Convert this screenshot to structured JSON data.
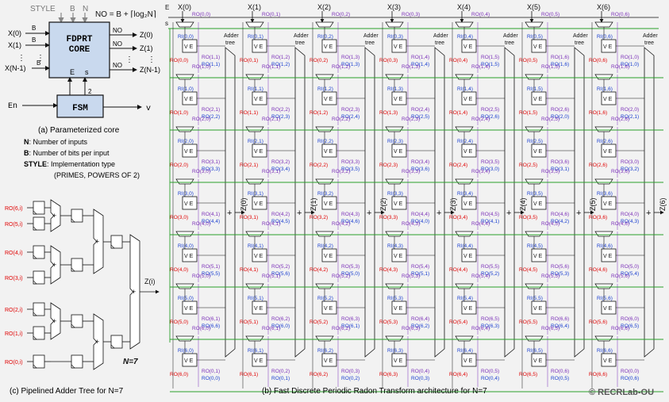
{
  "core": {
    "top_labels": [
      "STYLE",
      "B",
      "N"
    ],
    "no_formula": "NO = B + ⌈log₂N⌉",
    "box_line1": "FDPRT",
    "box_line2": "CORE",
    "inputs": [
      "X(0)",
      "X(1)",
      "X(N-1)"
    ],
    "outputs": [
      "Z(0)",
      "Z(1)",
      "Z(N-1)"
    ],
    "bus_in": "B",
    "bus_out": "NO",
    "port_e": "E",
    "port_s": "s",
    "bus2": "2",
    "fsm": "FSM",
    "en": "En",
    "v": "v",
    "caption": "(a) Parameterized core"
  },
  "legend": [
    {
      "key": "N",
      "text": ": Number of inputs"
    },
    {
      "key": "B",
      "text": ": Number of bits per input"
    },
    {
      "key": "STYLE",
      "text": ": Implementation  type"
    },
    {
      "key": "",
      "text": "(PRIMES, POWERS OF 2)"
    }
  ],
  "adder_tree": {
    "inputs": [
      "RO(6,i)",
      "RO(5,i)",
      "RO(4,i)",
      "RO(3,i)",
      "RO(2,i)",
      "RO(1,i)",
      "RO(0,i)"
    ],
    "output": "Z(i)",
    "n_label": "N=7",
    "caption": "(c) Pipelined  Adder Tree for N=7"
  },
  "architecture": {
    "n": 7,
    "x_labels": [
      "X(0)",
      "X(1)",
      "X(2)",
      "X(3)",
      "X(4)",
      "X(5)",
      "X(6)"
    ],
    "z_labels": [
      "Z(0)",
      "Z(1)",
      "Z(2)",
      "Z(3)",
      "Z(4)",
      "Z(5)",
      "Z(6)"
    ],
    "adder_tree_label": "Adder\ntree",
    "e_label": "E",
    "s_label": "s",
    "cell_label": "V  E",
    "caption": "(b) Fast Discrete Periodic Radon Transform architecture for N=7",
    "copyright": "© RECRLab-OU"
  },
  "colors": {
    "ro_red": "#e00000",
    "ri_blue": "#1a3fd0",
    "ro_purple": "#7a2fb8",
    "grid_green": "#2aa02a"
  }
}
